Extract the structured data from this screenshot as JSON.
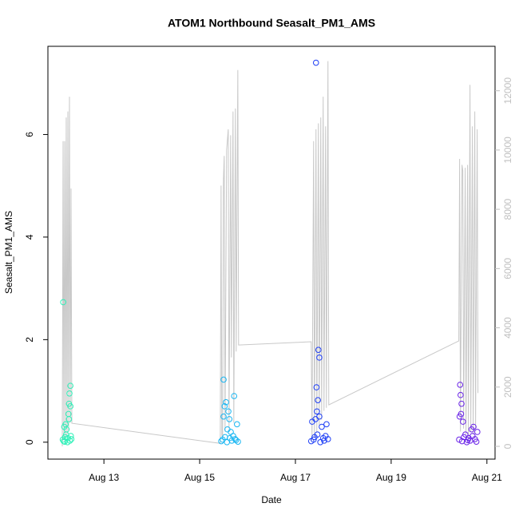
{
  "chart_data": {
    "type": "scatter",
    "title": "ATOM1 Northbound Seasalt_PM1_AMS",
    "xlabel": "Date",
    "ylabel": "Seasalt_PM1_AMS",
    "xlim": [
      11.83,
      21.17
    ],
    "xticks": [
      {
        "value": 13,
        "label": "Aug 13"
      },
      {
        "value": 15,
        "label": "Aug 15"
      },
      {
        "value": 17,
        "label": "Aug 17"
      },
      {
        "value": 19,
        "label": "Aug 19"
      },
      {
        "value": 21,
        "label": "Aug 21"
      }
    ],
    "ylim": [
      -0.33,
      7.72
    ],
    "yticks": [
      0,
      2,
      4,
      6
    ],
    "y2lim": [
      -431,
      13500
    ],
    "y2ticks": [
      0,
      2000,
      4000,
      6000,
      8000,
      10000,
      12000
    ],
    "y2color": "#c0c0c0",
    "series": [
      {
        "type": "line",
        "axis": "y2",
        "color": "#c8c8c8",
        "x": [
          12.13,
          12.147,
          12.163,
          12.18,
          12.197,
          12.213,
          12.23,
          12.247,
          12.263,
          12.28,
          12.297,
          12.313,
          12.33,
          15.43,
          15.447,
          15.463,
          15.48,
          15.497,
          15.513,
          15.53,
          15.563,
          15.597,
          15.613,
          15.647,
          15.663,
          15.697,
          15.713,
          15.747,
          15.763,
          15.797,
          15.813,
          17.33,
          17.347,
          17.38,
          17.397,
          17.43,
          17.447,
          17.48,
          17.497,
          17.53,
          17.547,
          17.58,
          17.597,
          17.63,
          17.647,
          17.68,
          17.697,
          20.413,
          20.43,
          20.447,
          20.48,
          20.497,
          20.513,
          20.547,
          20.563,
          20.597,
          20.613,
          20.647,
          20.663,
          20.697,
          20.713,
          20.747,
          20.763,
          20.797,
          20.813
        ],
        "values": [
          0,
          10300,
          200,
          10300,
          300,
          11100,
          400,
          11300,
          500,
          11800,
          800,
          8700,
          780,
          100,
          8800,
          380,
          300,
          9000,
          9800,
          500,
          10000,
          10700,
          600,
          10500,
          3000,
          11300,
          800,
          11400,
          3200,
          12700,
          3420,
          3530,
          200,
          10300,
          300,
          10700,
          500,
          10900,
          700,
          11100,
          900,
          11800,
          1200,
          10800,
          1300,
          13000,
          1400,
          3560,
          9700,
          500,
          9500,
          9300,
          600,
          9400,
          400,
          9500,
          300,
          12200,
          500,
          10800,
          400,
          11300,
          600,
          10700,
          1800
        ]
      },
      {
        "color": "#2ef0b8",
        "x": [
          12.15,
          12.3,
          12.28,
          12.27,
          12.3,
          12.26,
          12.27,
          12.2,
          12.17,
          12.22,
          12.14,
          12.16,
          12.19,
          12.21,
          12.24,
          12.25,
          12.29,
          12.31,
          12.32,
          12.18
        ],
        "values": [
          2.73,
          1.1,
          0.95,
          0.75,
          0.7,
          0.55,
          0.45,
          0.35,
          0.3,
          0.25,
          0.05,
          0.02,
          0.1,
          0.15,
          0,
          0.08,
          0.03,
          0.12,
          0.06,
          0.01
        ]
      },
      {
        "color": "#19b6f2",
        "x": [
          15.5,
          15.72,
          15.55,
          15.52,
          15.6,
          15.5,
          15.62,
          15.78,
          15.58,
          15.65,
          15.45,
          15.48,
          15.53,
          15.57,
          15.63,
          15.67,
          15.7,
          15.74,
          15.8,
          15.76
        ],
        "values": [
          1.22,
          0.9,
          0.78,
          0.7,
          0.6,
          0.5,
          0.45,
          0.35,
          0.25,
          0.2,
          0.02,
          0.05,
          0.1,
          0.0,
          0.08,
          0.03,
          0.12,
          0.06,
          0.01,
          0.04
        ]
      },
      {
        "color": "#1e3ef5",
        "x": [
          17.43,
          17.48,
          17.5,
          17.44,
          17.47,
          17.45,
          17.5,
          17.42,
          17.35,
          17.65,
          17.55,
          17.33,
          17.38,
          17.4,
          17.46,
          17.52,
          17.58,
          17.6,
          17.63,
          17.68
        ],
        "values": [
          7.4,
          1.8,
          1.65,
          1.07,
          0.82,
          0.6,
          0.5,
          0.45,
          0.4,
          0.35,
          0.3,
          0.02,
          0.05,
          0.1,
          0.15,
          0.0,
          0.08,
          0.03,
          0.12,
          0.06
        ]
      },
      {
        "color": "#6a23e8",
        "x": [
          20.44,
          20.45,
          20.47,
          20.46,
          20.43,
          20.5,
          20.72,
          20.68,
          20.8,
          20.42,
          20.48,
          20.52,
          20.55,
          20.58,
          20.62,
          20.65,
          20.7,
          20.75,
          20.78,
          20.6
        ],
        "values": [
          1.12,
          0.92,
          0.75,
          0.55,
          0.5,
          0.4,
          0.3,
          0.25,
          0.2,
          0.05,
          0.02,
          0.1,
          0.15,
          0.0,
          0.08,
          0.03,
          0.12,
          0.06,
          0.01,
          0.04
        ]
      }
    ]
  }
}
